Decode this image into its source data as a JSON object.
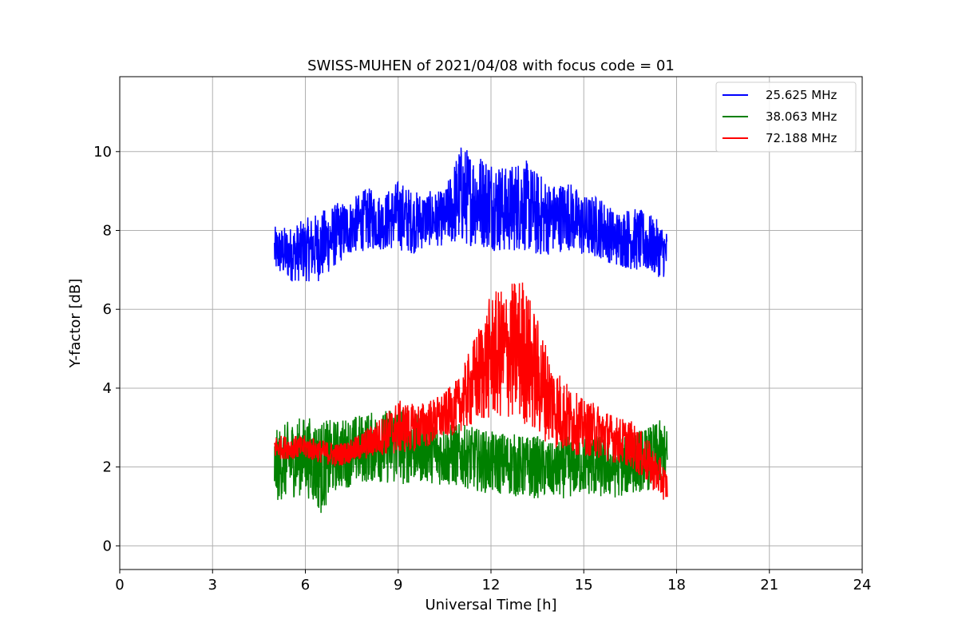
{
  "chart_data": {
    "type": "line",
    "title": "SWISS-MUHEN of 2021/04/08 with focus code = 01",
    "xlabel": "Universal Time [h]",
    "ylabel": "Y-factor [dB]",
    "xlim": [
      0,
      24
    ],
    "ylim": [
      -0.6,
      11.9
    ],
    "xticks": [
      0,
      3,
      6,
      9,
      12,
      15,
      18,
      21,
      24
    ],
    "yticks": [
      0,
      2,
      4,
      6,
      8,
      10
    ],
    "grid": true,
    "legend_position": "top-right",
    "series": [
      {
        "name": "25.625 MHz",
        "color": "#0000ff",
        "x": [
          5.0,
          5.5,
          6.0,
          6.5,
          7.0,
          7.5,
          8.0,
          8.5,
          9.0,
          9.5,
          10.0,
          10.5,
          11.0,
          11.5,
          12.0,
          12.5,
          13.0,
          13.5,
          14.0,
          14.5,
          15.0,
          15.5,
          16.0,
          16.5,
          17.0,
          17.5,
          17.7
        ],
        "center": [
          7.5,
          7.4,
          7.5,
          7.6,
          7.9,
          8.1,
          8.3,
          8.2,
          8.4,
          8.2,
          8.3,
          8.3,
          8.9,
          8.8,
          8.7,
          8.5,
          8.7,
          8.4,
          8.3,
          8.4,
          8.1,
          8.1,
          7.8,
          7.8,
          7.7,
          7.5,
          7.4
        ],
        "spread": [
          0.6,
          0.7,
          0.8,
          0.9,
          0.8,
          0.7,
          0.8,
          0.7,
          0.9,
          0.8,
          0.7,
          0.7,
          1.3,
          1.2,
          1.2,
          1.1,
          1.2,
          1.1,
          0.9,
          0.9,
          0.8,
          0.8,
          0.7,
          0.8,
          0.8,
          0.7,
          0.6
        ]
      },
      {
        "name": "38.063 MHz",
        "color": "#008000",
        "x": [
          5.0,
          5.5,
          6.0,
          6.5,
          7.0,
          7.5,
          8.0,
          8.5,
          9.0,
          9.5,
          10.0,
          10.5,
          11.0,
          11.5,
          12.0,
          12.5,
          13.0,
          13.5,
          14.0,
          14.5,
          15.0,
          15.5,
          16.0,
          16.5,
          17.0,
          17.5,
          17.7
        ],
        "center": [
          2.0,
          2.2,
          2.3,
          2.0,
          2.3,
          2.4,
          2.5,
          2.5,
          2.6,
          2.5,
          2.4,
          2.3,
          2.3,
          2.2,
          2.1,
          2.1,
          2.0,
          2.0,
          1.9,
          2.0,
          2.1,
          2.0,
          2.0,
          2.1,
          2.2,
          2.3,
          2.2
        ],
        "spread": [
          0.9,
          1.0,
          1.0,
          1.2,
          0.9,
          0.9,
          0.9,
          0.9,
          1.1,
          0.9,
          0.8,
          0.8,
          0.8,
          0.8,
          0.8,
          0.8,
          0.8,
          0.8,
          0.7,
          0.8,
          0.8,
          0.8,
          0.8,
          0.8,
          0.8,
          0.9,
          0.8
        ]
      },
      {
        "name": "72.188 MHz",
        "color": "#ff0000",
        "x": [
          5.0,
          5.5,
          6.0,
          6.5,
          7.0,
          7.5,
          8.0,
          8.5,
          9.0,
          9.5,
          10.0,
          10.5,
          11.0,
          11.5,
          12.0,
          12.5,
          13.0,
          13.5,
          14.0,
          14.5,
          15.0,
          15.5,
          16.0,
          16.5,
          17.0,
          17.5,
          17.7
        ],
        "center": [
          2.5,
          2.5,
          2.5,
          2.4,
          2.3,
          2.4,
          2.6,
          2.8,
          3.0,
          3.0,
          3.1,
          3.3,
          3.6,
          4.2,
          4.8,
          4.9,
          5.0,
          4.3,
          3.6,
          3.2,
          3.0,
          2.9,
          2.7,
          2.6,
          2.2,
          1.7,
          1.5
        ],
        "spread": [
          0.3,
          0.3,
          0.3,
          0.3,
          0.3,
          0.3,
          0.4,
          0.5,
          0.7,
          0.6,
          0.6,
          0.6,
          0.7,
          1.2,
          1.6,
          1.7,
          1.9,
          1.5,
          1.1,
          0.9,
          0.7,
          0.7,
          0.6,
          0.6,
          0.6,
          0.5,
          0.4
        ]
      }
    ]
  }
}
